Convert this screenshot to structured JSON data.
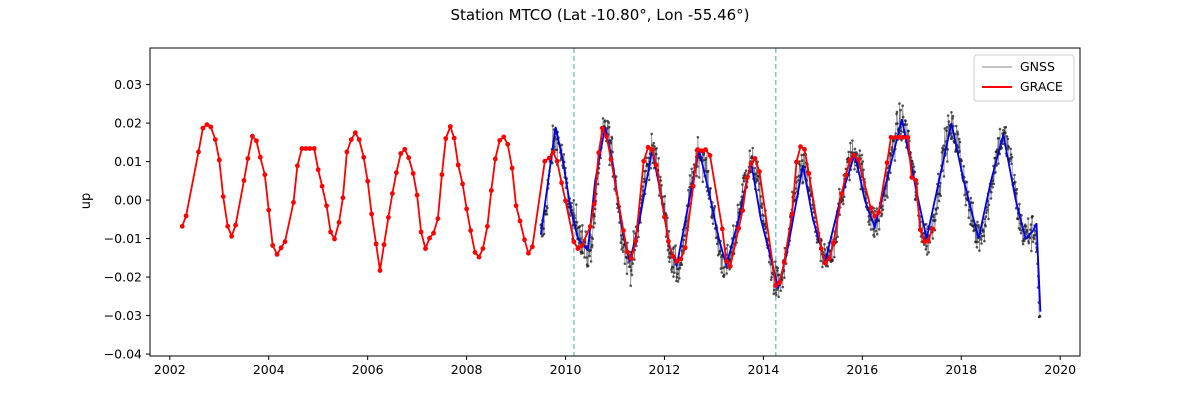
{
  "chart_data": {
    "type": "line",
    "title": "Station MTCO (Lat -10.80°, Lon -55.46°)",
    "xlabel": "",
    "ylabel": "up",
    "xlim": [
      2001.6,
      2020.4
    ],
    "ylim": [
      -0.0405,
      0.0395
    ],
    "x_ticks": [
      2002,
      2004,
      2006,
      2008,
      2010,
      2012,
      2014,
      2016,
      2018,
      2020
    ],
    "y_ticks": [
      -0.04,
      -0.03,
      -0.02,
      -0.01,
      0.0,
      0.01,
      0.02,
      0.03
    ],
    "y_tick_labels": [
      "−0.04",
      "−0.03",
      "−0.02",
      "−0.01",
      "0.00",
      "0.01",
      "0.02",
      "0.03"
    ],
    "vertical_lines": [
      {
        "x": 2010.17,
        "color": "#7ec8d8"
      },
      {
        "x": 2014.25,
        "color": "#7ec8d8"
      }
    ],
    "legend": {
      "placement": "top-right",
      "entries": [
        "GNSS",
        "GRACE"
      ]
    },
    "series": [
      {
        "name": "GNSS",
        "color": "#555555",
        "style": "thin line with dots",
        "x_start": 2009.5,
        "x_end": 2019.6,
        "mean_trend": [
          [
            2009.5,
            -0.009
          ],
          [
            2009.8,
            0.016
          ],
          [
            2010.2,
            -0.006
          ],
          [
            2010.45,
            -0.014
          ],
          [
            2010.8,
            0.018
          ],
          [
            2011.3,
            -0.016
          ],
          [
            2011.75,
            0.012
          ],
          [
            2012.25,
            -0.018
          ],
          [
            2012.7,
            0.012
          ],
          [
            2013.25,
            -0.017
          ],
          [
            2013.75,
            0.009
          ],
          [
            2014.3,
            -0.022
          ],
          [
            2014.8,
            0.008
          ],
          [
            2015.25,
            -0.016
          ],
          [
            2015.85,
            0.012
          ],
          [
            2016.25,
            -0.006
          ],
          [
            2016.8,
            0.02
          ],
          [
            2017.3,
            -0.01
          ],
          [
            2017.8,
            0.018
          ],
          [
            2018.35,
            -0.009
          ],
          [
            2018.85,
            0.016
          ],
          [
            2019.3,
            -0.009
          ],
          [
            2019.5,
            -0.008
          ],
          [
            2019.6,
            -0.032
          ]
        ]
      },
      {
        "name": "",
        "color": "#0000ee",
        "style": "smoothed line",
        "points": [
          [
            2009.5,
            -0.009
          ],
          [
            2009.65,
            0.005
          ],
          [
            2009.8,
            0.019
          ],
          [
            2009.95,
            0.01
          ],
          [
            2010.1,
            -0.002
          ],
          [
            2010.25,
            -0.01
          ],
          [
            2010.45,
            -0.013
          ],
          [
            2010.6,
            0.005
          ],
          [
            2010.8,
            0.019
          ],
          [
            2010.95,
            0.01
          ],
          [
            2011.15,
            -0.008
          ],
          [
            2011.3,
            -0.016
          ],
          [
            2011.5,
            -0.005
          ],
          [
            2011.75,
            0.013
          ],
          [
            2011.95,
            0.0
          ],
          [
            2012.1,
            -0.012
          ],
          [
            2012.25,
            -0.017
          ],
          [
            2012.5,
            0.0
          ],
          [
            2012.7,
            0.013
          ],
          [
            2012.9,
            0.002
          ],
          [
            2013.1,
            -0.01
          ],
          [
            2013.25,
            -0.017
          ],
          [
            2013.5,
            -0.005
          ],
          [
            2013.75,
            0.01
          ],
          [
            2013.95,
            -0.005
          ],
          [
            2014.15,
            -0.015
          ],
          [
            2014.3,
            -0.023
          ],
          [
            2014.5,
            -0.012
          ],
          [
            2014.8,
            0.009
          ],
          [
            2015.0,
            -0.005
          ],
          [
            2015.25,
            -0.016
          ],
          [
            2015.55,
            0.0
          ],
          [
            2015.85,
            0.012
          ],
          [
            2016.05,
            0.0
          ],
          [
            2016.25,
            -0.007
          ],
          [
            2016.55,
            0.008
          ],
          [
            2016.8,
            0.021
          ],
          [
            2017.05,
            0.005
          ],
          [
            2017.3,
            -0.01
          ],
          [
            2017.55,
            0.005
          ],
          [
            2017.8,
            0.02
          ],
          [
            2018.05,
            0.005
          ],
          [
            2018.35,
            -0.01
          ],
          [
            2018.6,
            0.005
          ],
          [
            2018.85,
            0.017
          ],
          [
            2019.1,
            0.0
          ],
          [
            2019.3,
            -0.01
          ],
          [
            2019.45,
            -0.008
          ],
          [
            2019.52,
            -0.006
          ],
          [
            2019.6,
            -0.029
          ]
        ]
      },
      {
        "name": "GRACE",
        "color": "#ff0000",
        "style": "line with dot markers",
        "points": [
          [
            2002.25,
            -0.0068
          ],
          [
            2002.33,
            -0.0041
          ],
          [
            2002.58,
            0.0125
          ],
          [
            2002.67,
            0.0187
          ],
          [
            2002.75,
            0.0196
          ],
          [
            2002.83,
            0.019
          ],
          [
            2002.92,
            0.0157
          ],
          [
            2003.0,
            0.0104
          ],
          [
            2003.08,
            0.0009
          ],
          [
            2003.17,
            -0.0068
          ],
          [
            2003.25,
            -0.0094
          ],
          [
            2003.33,
            -0.0065
          ],
          [
            2003.5,
            0.0051
          ],
          [
            2003.58,
            0.0108
          ],
          [
            2003.67,
            0.0166
          ],
          [
            2003.75,
            0.0154
          ],
          [
            2003.83,
            0.0111
          ],
          [
            2003.92,
            0.0066
          ],
          [
            2004.0,
            -0.0026
          ],
          [
            2004.08,
            -0.0118
          ],
          [
            2004.17,
            -0.0141
          ],
          [
            2004.25,
            -0.0124
          ],
          [
            2004.33,
            -0.0108
          ],
          [
            2004.5,
            -0.0006
          ],
          [
            2004.58,
            0.0089
          ],
          [
            2004.67,
            0.0134
          ],
          [
            2004.75,
            0.0134
          ],
          [
            2004.83,
            0.0134
          ],
          [
            2004.92,
            0.0134
          ],
          [
            2005.0,
            0.0079
          ],
          [
            2005.08,
            0.0036
          ],
          [
            2005.17,
            -0.0015
          ],
          [
            2005.25,
            -0.0083
          ],
          [
            2005.33,
            -0.0101
          ],
          [
            2005.42,
            -0.0058
          ],
          [
            2005.5,
            0.0006
          ],
          [
            2005.58,
            0.0125
          ],
          [
            2005.67,
            0.0157
          ],
          [
            2005.75,
            0.0175
          ],
          [
            2005.83,
            0.0157
          ],
          [
            2005.92,
            0.0111
          ],
          [
            2006.0,
            0.0049
          ],
          [
            2006.08,
            -0.0036
          ],
          [
            2006.17,
            -0.0114
          ],
          [
            2006.25,
            -0.0183
          ],
          [
            2006.33,
            -0.0116
          ],
          [
            2006.42,
            -0.0045
          ],
          [
            2006.5,
            0.0017
          ],
          [
            2006.58,
            0.0071
          ],
          [
            2006.67,
            0.0121
          ],
          [
            2006.75,
            0.0132
          ],
          [
            2006.83,
            0.011
          ],
          [
            2006.92,
            0.0069
          ],
          [
            2007.0,
            0.0013
          ],
          [
            2007.08,
            -0.0083
          ],
          [
            2007.17,
            -0.0126
          ],
          [
            2007.25,
            -0.0099
          ],
          [
            2007.33,
            -0.0086
          ],
          [
            2007.42,
            -0.0048
          ],
          [
            2007.5,
            0.0066
          ],
          [
            2007.58,
            0.016
          ],
          [
            2007.67,
            0.0191
          ],
          [
            2007.75,
            0.0161
          ],
          [
            2007.83,
            0.0091
          ],
          [
            2007.92,
            0.0042
          ],
          [
            2008.0,
            -0.0023
          ],
          [
            2008.08,
            -0.0079
          ],
          [
            2008.17,
            -0.0136
          ],
          [
            2008.25,
            -0.0148
          ],
          [
            2008.33,
            -0.0126
          ],
          [
            2008.42,
            -0.0068
          ],
          [
            2008.5,
            0.0025
          ],
          [
            2008.58,
            0.0107
          ],
          [
            2008.67,
            0.0155
          ],
          [
            2008.75,
            0.0164
          ],
          [
            2008.83,
            0.0145
          ],
          [
            2008.92,
            0.0083
          ],
          [
            2009.0,
            -0.0015
          ],
          [
            2009.08,
            -0.0054
          ],
          [
            2009.17,
            -0.0103
          ],
          [
            2009.25,
            -0.0138
          ],
          [
            2009.33,
            -0.0121
          ],
          [
            2009.58,
            0.0101
          ],
          [
            2009.67,
            0.0109
          ],
          [
            2009.75,
            0.0124
          ],
          [
            2009.83,
            0.0101
          ],
          [
            2009.92,
            0.0045
          ],
          [
            2010.0,
            -0.0002
          ],
          [
            2010.17,
            -0.0108
          ],
          [
            2010.25,
            -0.0126
          ],
          [
            2010.33,
            -0.0118
          ],
          [
            2010.5,
            -0.0069
          ],
          [
            2010.58,
            -0.001
          ],
          [
            2010.67,
            0.0123
          ],
          [
            2010.75,
            0.0186
          ],
          [
            2010.83,
            0.0165
          ],
          [
            2010.92,
            0.0106
          ],
          [
            2011.17,
            -0.0079
          ],
          [
            2011.25,
            -0.0135
          ],
          [
            2011.33,
            -0.0152
          ],
          [
            2011.42,
            -0.0106
          ],
          [
            2011.58,
            0.0101
          ],
          [
            2011.67,
            0.0137
          ],
          [
            2011.75,
            0.0131
          ],
          [
            2011.83,
            0.0091
          ],
          [
            2012.0,
            -0.0044
          ],
          [
            2012.08,
            -0.0107
          ],
          [
            2012.17,
            -0.0146
          ],
          [
            2012.25,
            -0.0159
          ],
          [
            2012.33,
            -0.0153
          ],
          [
            2012.42,
            -0.0124
          ],
          [
            2012.58,
            0.0036
          ],
          [
            2012.67,
            0.0131
          ],
          [
            2012.75,
            0.0128
          ],
          [
            2012.83,
            0.0131
          ],
          [
            2012.92,
            0.0116
          ],
          [
            2013.17,
            -0.0075
          ],
          [
            2013.25,
            -0.0159
          ],
          [
            2013.33,
            -0.0172
          ],
          [
            2013.5,
            -0.0073
          ],
          [
            2013.58,
            -0.0027
          ],
          [
            2013.67,
            0.0058
          ],
          [
            2013.75,
            0.0095
          ],
          [
            2013.83,
            0.0108
          ],
          [
            2013.92,
            0.0074
          ],
          [
            2014.25,
            -0.0222
          ],
          [
            2014.33,
            -0.0214
          ],
          [
            2014.42,
            -0.0162
          ],
          [
            2014.58,
            -0.0036
          ],
          [
            2014.67,
            0.0099
          ],
          [
            2014.75,
            0.0139
          ],
          [
            2014.83,
            0.0132
          ],
          [
            2014.92,
            0.0069
          ],
          [
            2015.17,
            -0.0126
          ],
          [
            2015.25,
            -0.0164
          ],
          [
            2015.33,
            -0.0152
          ],
          [
            2015.42,
            -0.0111
          ],
          [
            2015.58,
            0.0017
          ],
          [
            2015.67,
            0.0065
          ],
          [
            2015.75,
            0.0104
          ],
          [
            2015.83,
            0.0117
          ],
          [
            2015.92,
            0.0105
          ],
          [
            2016.17,
            -0.0021
          ],
          [
            2016.25,
            -0.0042
          ],
          [
            2016.33,
            -0.0032
          ],
          [
            2016.5,
            0.0097
          ],
          [
            2016.58,
            0.0163
          ],
          [
            2016.67,
            0.0163
          ],
          [
            2016.75,
            0.0163
          ],
          [
            2016.83,
            0.0163
          ],
          [
            2016.92,
            0.0163
          ],
          [
            2017.0,
            0.0059
          ],
          [
            2017.08,
            0.0051
          ],
          [
            2017.17,
            -0.0077
          ],
          [
            2017.25,
            -0.0108
          ],
          [
            2017.33,
            -0.0106
          ],
          [
            2017.42,
            -0.0075
          ]
        ]
      }
    ]
  }
}
